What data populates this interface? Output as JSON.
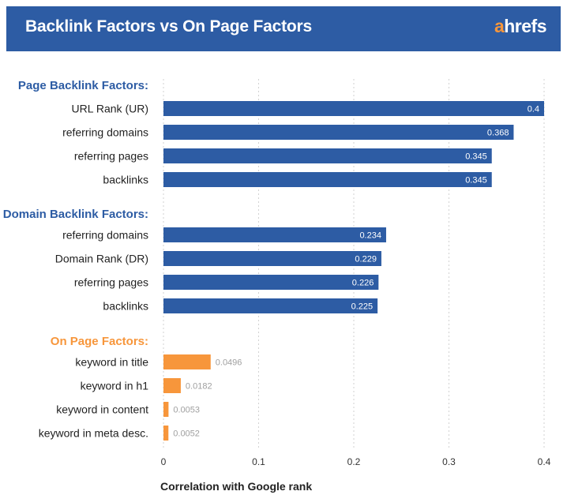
{
  "header": {
    "title": "Backlink Factors vs On Page Factors",
    "brand_first": "a",
    "brand_rest": "hrefs"
  },
  "colors": {
    "header_bg": "#2d5ca4",
    "blue_bar": "#2d5ca4",
    "orange_bar": "#f7963b",
    "group_blue": "#2d5ca4",
    "group_orange": "#f7963b"
  },
  "chart_data": {
    "type": "bar",
    "orientation": "horizontal",
    "title": "Backlink Factors vs On Page Factors",
    "xlabel": "Correlation with Google rank",
    "ylabel": "",
    "xlim": [
      0,
      0.4
    ],
    "xticks": [
      0,
      0.1,
      0.2,
      0.3,
      0.4
    ],
    "xtick_labels": [
      "0",
      "0.1",
      "0.2",
      "0.3",
      "0.4"
    ],
    "grid": "vertical dashed",
    "groups": [
      {
        "name": "Page Backlink Factors:",
        "color": "#2d5ca4",
        "label_style": "inside",
        "categories": [
          "URL Rank (UR)",
          "referring domains",
          "referring pages",
          "backlinks"
        ],
        "values": [
          0.4,
          0.368,
          0.345,
          0.345
        ],
        "value_labels": [
          "0.4",
          "0.368",
          "0.345",
          "0.345"
        ]
      },
      {
        "name": "Domain Backlink Factors:",
        "color": "#2d5ca4",
        "label_style": "inside",
        "categories": [
          "referring domains",
          "Domain Rank (DR)",
          "referring pages",
          "backlinks"
        ],
        "values": [
          0.234,
          0.229,
          0.226,
          0.225
        ],
        "value_labels": [
          "0.234",
          "0.229",
          "0.226",
          "0.225"
        ]
      },
      {
        "name": "On Page Factors:",
        "color": "#f7963b",
        "label_style": "outside",
        "categories": [
          "keyword in title",
          "keyword in h1",
          "keyword in content",
          "keyword in meta desc."
        ],
        "values": [
          0.0496,
          0.0182,
          0.0053,
          0.0052
        ],
        "value_labels": [
          "0.0496",
          "0.0182",
          "0.0053",
          "0.0052"
        ]
      }
    ]
  }
}
